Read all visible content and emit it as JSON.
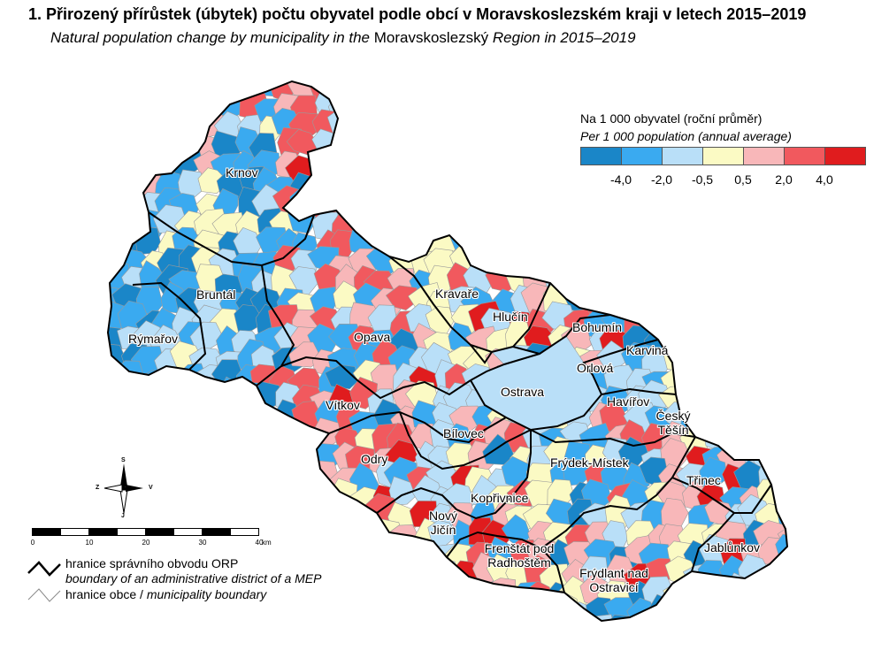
{
  "header": {
    "title": "1. Přirozený přírůstek (úbytek) počtu obyvatel podle obcí v Moravskoslezském kraji v letech 2015–2019",
    "subtitle_part1": "Natural population change by municipality in the ",
    "subtitle_region": "Moravskoslezský",
    "subtitle_part2": " Region in 2015–2019"
  },
  "legend": {
    "title": "Na 1 000 obyvatel (roční průměr)",
    "subtitle": "Per 1 000 population (annual average)",
    "colors": [
      "#1a86c8",
      "#3aaaf0",
      "#b9dff8",
      "#fbfac4",
      "#f8b7b9",
      "#f1595e",
      "#e01c1e"
    ],
    "ticks": [
      "-4,0",
      "-2,0",
      "-0,5",
      "0,5",
      "2,0",
      "4,0"
    ]
  },
  "map": {
    "border_color": "#000000",
    "municipality_line_color": "#9a9a9a",
    "cities": [
      {
        "name": "Krnov"
      },
      {
        "name": "Bruntál"
      },
      {
        "name": "Rýmařov"
      },
      {
        "name": "Opava"
      },
      {
        "name": "Kravaře"
      },
      {
        "name": "Hlučín"
      },
      {
        "name": "Bohumín"
      },
      {
        "name": "Karviná"
      },
      {
        "name": "Orlová"
      },
      {
        "name": "Ostrava"
      },
      {
        "name": "Havířov"
      },
      {
        "name": "Český Těšín"
      },
      {
        "name": "Vítkov"
      },
      {
        "name": "Bílovec"
      },
      {
        "name": "Odry"
      },
      {
        "name": "Frýdek-Místek"
      },
      {
        "name": "Třinec"
      },
      {
        "name": "Kopřivnice"
      },
      {
        "name": "Nový Jičín"
      },
      {
        "name": "Frenštát pod Radhoštěm"
      },
      {
        "name": "Frýdlant nad Ostravicí"
      },
      {
        "name": "Jablůnkov"
      }
    ]
  },
  "scale_bar": {
    "labels": [
      "0",
      "10",
      "20",
      "30",
      "40"
    ],
    "unit": "km"
  },
  "compass": {
    "n": "S",
    "s": "J",
    "w": "Z",
    "e": "V"
  },
  "boundary_legend": {
    "orp_cz": "hranice správního obvodu ORP",
    "orp_en": "boundary of an administrative district of a MEP",
    "mun_cz": "hranice obce / ",
    "mun_en": "municipality boundary"
  }
}
